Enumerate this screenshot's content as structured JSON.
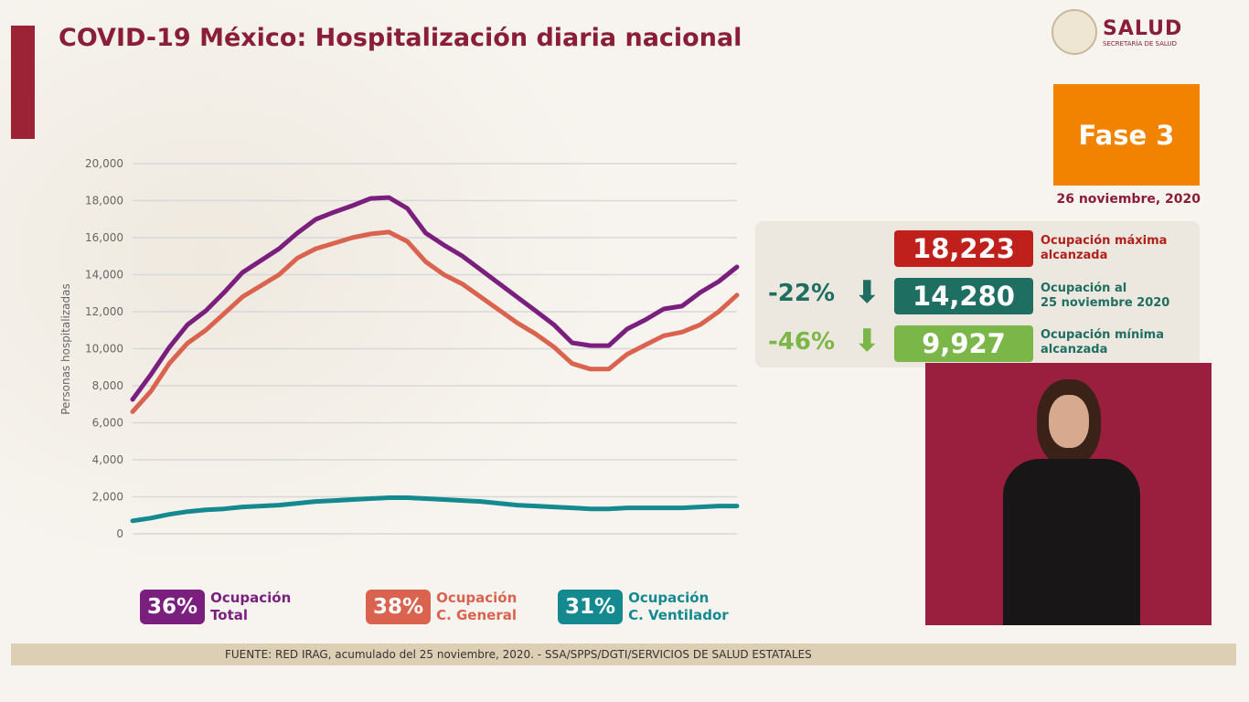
{
  "title": "COVID-19 México: Hospitalización diaria nacional",
  "logo": {
    "name": "SALUD",
    "subtitle": "SECRETARÍA DE SALUD"
  },
  "phase": {
    "label": "Fase 3",
    "color": "#f28300"
  },
  "date": "26 noviembre, 2020",
  "stats": [
    {
      "value": "18,223",
      "label1": "Ocupación máxima",
      "label2": "alcanzada",
      "color": "#c0201c",
      "text_color": "#b0201c"
    },
    {
      "value": "14,280",
      "label1": "Ocupación al",
      "label2": "25 noviembre 2020",
      "change": "-22%",
      "arrow": "arrow-down-icon",
      "color": "#1f6e62",
      "text_color": "#1f6e62"
    },
    {
      "value": "9,927",
      "label1": "Ocupación mínima",
      "label2": "alcanzada",
      "change": "-46%",
      "arrow": "arrow-down-icon",
      "color": "#7ab648",
      "text_color": "#1f6e62",
      "change_color": "#7ab648"
    }
  ],
  "legend": [
    {
      "pct": "36%",
      "line1": "Ocupación",
      "line2": "Total",
      "color": "#7b1f7e"
    },
    {
      "pct": "38%",
      "line1": "Ocupación",
      "line2": "C. General",
      "color": "#d9634f"
    },
    {
      "pct": "31%",
      "line1": "Ocupación",
      "line2": "C. Ventilador",
      "color": "#14898f"
    }
  ],
  "footer": "FUENTE: RED IRAG, acumulado del 25 noviembre, 2020. -  SSA/SPPS/DGTI/SERVICIOS DE SALUD ESTATALES",
  "chart_data": {
    "type": "line",
    "ylabel": "Personas hospitalizadas",
    "ylim": [
      0,
      20000
    ],
    "yticks": [
      "0",
      "2,000",
      "4,000",
      "6,000",
      "8,000",
      "10,000",
      "12,000",
      "14,000",
      "16,000",
      "18,000",
      "20,000"
    ],
    "grid": true,
    "series": [
      {
        "key": "total",
        "color": "#7b1f7e",
        "values": [
          7260,
          8600,
          10070,
          11300,
          12050,
          13040,
          14120,
          14760,
          15400,
          16250,
          16990,
          17380,
          17730,
          18120,
          18170,
          17580,
          16250,
          15600,
          15010,
          14270,
          13530,
          12790,
          12050,
          11300,
          10320,
          10170,
          10170,
          11060,
          11560,
          12150,
          12300,
          13040,
          13630,
          14420
        ]
      },
      {
        "key": "general",
        "color": "#d9634f",
        "values": [
          6600,
          7700,
          9200,
          10300,
          11000,
          11900,
          12800,
          13400,
          14000,
          14900,
          15400,
          15700,
          16000,
          16200,
          16300,
          15800,
          14700,
          14000,
          13500,
          12800,
          12100,
          11400,
          10800,
          10100,
          9200,
          8900,
          8900,
          9700,
          10200,
          10700,
          10900,
          11300,
          12000,
          12900
        ]
      },
      {
        "key": "ventilador",
        "color": "#14898f",
        "values": [
          700,
          850,
          1050,
          1200,
          1300,
          1350,
          1450,
          1500,
          1550,
          1650,
          1750,
          1800,
          1850,
          1900,
          1950,
          1950,
          1900,
          1850,
          1800,
          1750,
          1650,
          1550,
          1500,
          1450,
          1400,
          1350,
          1350,
          1400,
          1400,
          1400,
          1400,
          1450,
          1500,
          1500
        ]
      }
    ]
  }
}
